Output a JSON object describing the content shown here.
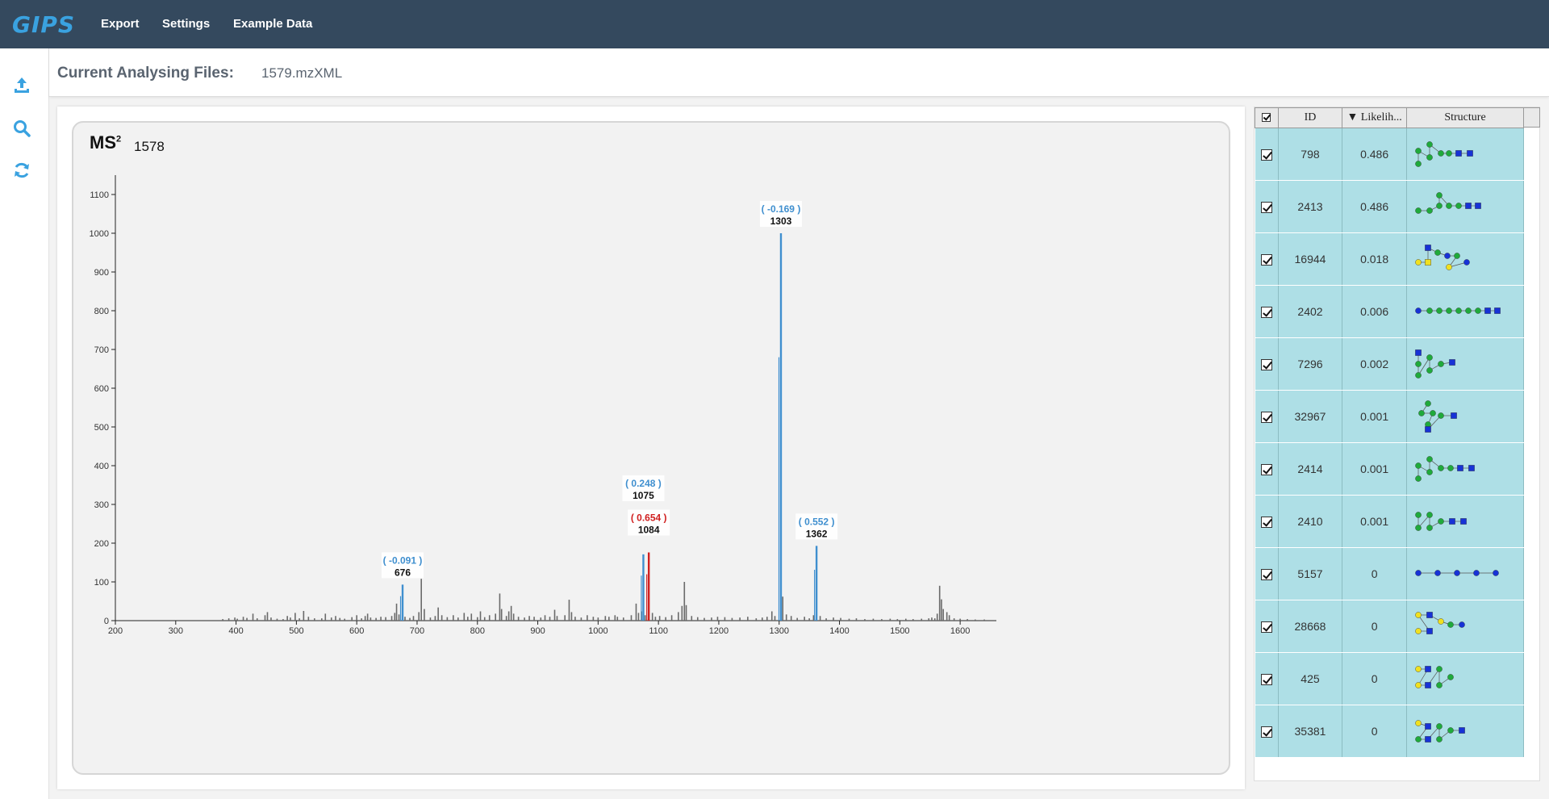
{
  "app": {
    "logo": "GIPS",
    "menu": [
      {
        "label": "Export"
      },
      {
        "label": "Settings"
      },
      {
        "label": "Example Data"
      }
    ],
    "brand_color": "#3aa2e0",
    "topbar_color": "#34495e"
  },
  "sidebar": {
    "buttons": [
      {
        "icon": "upload-icon"
      },
      {
        "icon": "search-icon"
      },
      {
        "icon": "refresh-icon"
      }
    ],
    "icon_color": "#3aa2e0"
  },
  "header": {
    "label": "Current Analysing Files:",
    "file": "1579.mzXML"
  },
  "chart": {
    "title_main": "MS",
    "title_sup": "2",
    "scan": "1578"
  },
  "chart_data": {
    "type": "bar",
    "xlim": [
      200,
      1660
    ],
    "ylim": [
      0,
      1150
    ],
    "x_ticks": [
      200,
      300,
      400,
      500,
      600,
      700,
      800,
      900,
      1000,
      1100,
      1200,
      1300,
      1400,
      1500,
      1600
    ],
    "y_ticks": [
      0,
      100,
      200,
      300,
      400,
      500,
      600,
      700,
      800,
      900,
      1000,
      1100
    ],
    "grid": false,
    "colors": {
      "noise": "#6a6a6a",
      "matched": "#3f8fcf",
      "highlight": "#d02020"
    },
    "noise_peaks": [
      [
        378,
        4
      ],
      [
        388,
        6
      ],
      [
        398,
        8
      ],
      [
        402,
        5
      ],
      [
        412,
        10
      ],
      [
        418,
        7
      ],
      [
        428,
        18
      ],
      [
        435,
        6
      ],
      [
        448,
        14
      ],
      [
        452,
        22
      ],
      [
        458,
        8
      ],
      [
        468,
        5
      ],
      [
        478,
        4
      ],
      [
        485,
        12
      ],
      [
        490,
        8
      ],
      [
        498,
        20
      ],
      [
        505,
        6
      ],
      [
        512,
        25
      ],
      [
        520,
        10
      ],
      [
        530,
        6
      ],
      [
        542,
        6
      ],
      [
        548,
        18
      ],
      [
        558,
        8
      ],
      [
        565,
        12
      ],
      [
        572,
        7
      ],
      [
        580,
        5
      ],
      [
        592,
        9
      ],
      [
        600,
        14
      ],
      [
        608,
        6
      ],
      [
        614,
        12
      ],
      [
        618,
        18
      ],
      [
        623,
        8
      ],
      [
        632,
        7
      ],
      [
        640,
        10
      ],
      [
        648,
        9
      ],
      [
        658,
        12
      ],
      [
        663,
        20
      ],
      [
        666,
        44
      ],
      [
        670,
        16
      ],
      [
        680,
        10
      ],
      [
        688,
        7
      ],
      [
        694,
        12
      ],
      [
        703,
        22
      ],
      [
        707,
        108
      ],
      [
        712,
        30
      ],
      [
        722,
        8
      ],
      [
        730,
        12
      ],
      [
        735,
        34
      ],
      [
        741,
        14
      ],
      [
        750,
        9
      ],
      [
        760,
        14
      ],
      [
        768,
        8
      ],
      [
        778,
        20
      ],
      [
        784,
        10
      ],
      [
        790,
        18
      ],
      [
        800,
        9
      ],
      [
        805,
        24
      ],
      [
        812,
        9
      ],
      [
        820,
        14
      ],
      [
        830,
        18
      ],
      [
        837,
        70
      ],
      [
        840,
        30
      ],
      [
        848,
        12
      ],
      [
        852,
        24
      ],
      [
        856,
        38
      ],
      [
        860,
        18
      ],
      [
        868,
        10
      ],
      [
        878,
        8
      ],
      [
        886,
        12
      ],
      [
        894,
        10
      ],
      [
        905,
        8
      ],
      [
        912,
        14
      ],
      [
        920,
        10
      ],
      [
        928,
        28
      ],
      [
        932,
        12
      ],
      [
        945,
        14
      ],
      [
        952,
        54
      ],
      [
        956,
        22
      ],
      [
        962,
        10
      ],
      [
        972,
        8
      ],
      [
        982,
        14
      ],
      [
        992,
        10
      ],
      [
        1000,
        8
      ],
      [
        1012,
        12
      ],
      [
        1018,
        10
      ],
      [
        1028,
        14
      ],
      [
        1032,
        10
      ],
      [
        1042,
        8
      ],
      [
        1055,
        14
      ],
      [
        1063,
        44
      ],
      [
        1067,
        20
      ],
      [
        1072,
        24
      ],
      [
        1078,
        14
      ],
      [
        1090,
        20
      ],
      [
        1095,
        10
      ],
      [
        1102,
        12
      ],
      [
        1112,
        9
      ],
      [
        1122,
        14
      ],
      [
        1133,
        22
      ],
      [
        1139,
        38
      ],
      [
        1143,
        100
      ],
      [
        1146,
        40
      ],
      [
        1155,
        12
      ],
      [
        1165,
        9
      ],
      [
        1176,
        7
      ],
      [
        1188,
        8
      ],
      [
        1198,
        10
      ],
      [
        1210,
        9
      ],
      [
        1222,
        7
      ],
      [
        1235,
        8
      ],
      [
        1248,
        10
      ],
      [
        1262,
        6
      ],
      [
        1272,
        8
      ],
      [
        1280,
        10
      ],
      [
        1288,
        24
      ],
      [
        1293,
        12
      ],
      [
        1306,
        62
      ],
      [
        1312,
        16
      ],
      [
        1320,
        12
      ],
      [
        1330,
        7
      ],
      [
        1342,
        10
      ],
      [
        1350,
        6
      ],
      [
        1357,
        14
      ],
      [
        1368,
        12
      ],
      [
        1378,
        6
      ],
      [
        1390,
        8
      ],
      [
        1402,
        7
      ],
      [
        1416,
        5
      ],
      [
        1428,
        6
      ],
      [
        1442,
        4
      ],
      [
        1456,
        5
      ],
      [
        1470,
        4
      ],
      [
        1484,
        5
      ],
      [
        1496,
        4
      ],
      [
        1510,
        5
      ],
      [
        1522,
        4
      ],
      [
        1536,
        5
      ],
      [
        1548,
        6
      ],
      [
        1553,
        8
      ],
      [
        1558,
        6
      ],
      [
        1562,
        18
      ],
      [
        1566,
        90
      ],
      [
        1569,
        55
      ],
      [
        1572,
        30
      ],
      [
        1578,
        22
      ],
      [
        1582,
        14
      ],
      [
        1590,
        6
      ],
      [
        1600,
        5
      ],
      [
        1612,
        4
      ],
      [
        1625,
        3
      ],
      [
        1640,
        3
      ]
    ],
    "matched_peaks": [
      {
        "mz": 676,
        "intensity": 93,
        "label": "676",
        "delta": "( -0.091 )",
        "color": "blue"
      },
      {
        "mz": 1075,
        "intensity": 171,
        "label": "1075",
        "delta": "( 0.248 )",
        "color": "blue"
      },
      {
        "mz": 1084,
        "intensity": 176,
        "label": "1084",
        "delta": "( 0.654 )",
        "color": "red"
      },
      {
        "mz": 1303,
        "intensity": 1000,
        "label": "1303",
        "delta": "( -0.169 )",
        "color": "blue"
      },
      {
        "mz": 1362,
        "intensity": 193,
        "label": "1362",
        "delta": "( 0.552 )",
        "color": "blue"
      }
    ]
  },
  "table": {
    "columns": [
      "ID",
      "▼ Likelih...",
      "Structure"
    ],
    "rows": [
      {
        "id": "798",
        "likelihood": "0.486"
      },
      {
        "id": "2413",
        "likelihood": "0.486"
      },
      {
        "id": "16944",
        "likelihood": "0.018"
      },
      {
        "id": "2402",
        "likelihood": "0.006"
      },
      {
        "id": "7296",
        "likelihood": "0.002"
      },
      {
        "id": "32967",
        "likelihood": "0.001"
      },
      {
        "id": "2414",
        "likelihood": "0.001"
      },
      {
        "id": "2410",
        "likelihood": "0.001"
      },
      {
        "id": "5157",
        "likelihood": "0"
      },
      {
        "id": "28668",
        "likelihood": "0"
      },
      {
        "id": "425",
        "likelihood": "0"
      },
      {
        "id": "35381",
        "likelihood": "0"
      }
    ]
  }
}
